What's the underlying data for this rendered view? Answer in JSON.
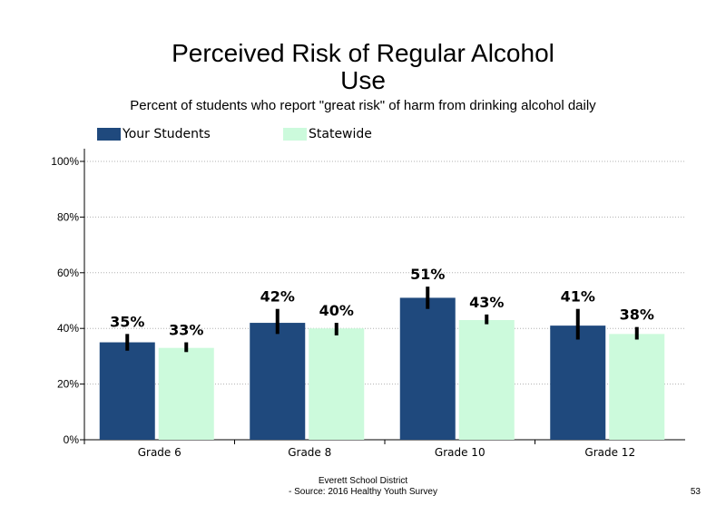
{
  "chart_data": {
    "type": "bar",
    "title_line1": "Perceived Risk of Regular Alcohol",
    "title_line2": "Use",
    "subtitle": "Percent of students who report \"great risk\" of harm from drinking alcohol daily",
    "categories": [
      "Grade 6",
      "Grade 8",
      "Grade 10",
      "Grade 12"
    ],
    "series": [
      {
        "name": "Your Students",
        "color": "#1f497d",
        "values": [
          35,
          42,
          51,
          41
        ],
        "labels": [
          "35%",
          "42%",
          "51%",
          "41%"
        ],
        "error_low": [
          32,
          38,
          47,
          36
        ],
        "error_high": [
          38,
          47,
          55,
          47
        ]
      },
      {
        "name": "Statewide",
        "color": "#ccfadc",
        "values": [
          33,
          40,
          43,
          38
        ],
        "labels": [
          "33%",
          "40%",
          "43%",
          "38%"
        ],
        "error_low": [
          31.5,
          37.5,
          41.5,
          36
        ],
        "error_high": [
          35,
          42,
          45,
          40.5
        ]
      }
    ],
    "y_ticks": [
      "0%",
      "20%",
      "40%",
      "60%",
      "80%",
      "100%"
    ],
    "ylim": [
      0,
      100
    ],
    "grid": true,
    "legend_position": "top-left"
  },
  "footer": {
    "line1": "Everett School District",
    "line2": "- Source: 2016 Healthy  Youth Survey",
    "page_number": "53"
  }
}
